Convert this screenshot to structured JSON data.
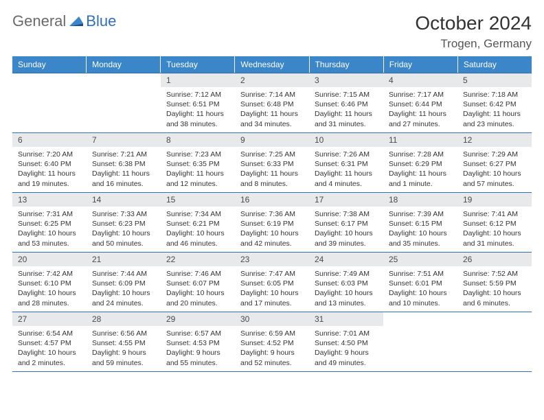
{
  "logo": {
    "text1": "General",
    "text2": "Blue"
  },
  "title": "October 2024",
  "location": "Trogen, Germany",
  "colors": {
    "header_bg": "#3a86c8",
    "header_text": "#ffffff",
    "rule": "#2f6fb3",
    "daynum_bg": "#e7e9eb",
    "daynum_text": "#4a4a4a",
    "body_text": "#333333",
    "logo_gray": "#6a6a6a",
    "logo_blue": "#2f6fb3"
  },
  "dow": [
    "Sunday",
    "Monday",
    "Tuesday",
    "Wednesday",
    "Thursday",
    "Friday",
    "Saturday"
  ],
  "weeks": [
    [
      null,
      null,
      {
        "n": "1",
        "sr": "Sunrise: 7:12 AM",
        "ss": "Sunset: 6:51 PM",
        "dl": "Daylight: 11 hours and 38 minutes."
      },
      {
        "n": "2",
        "sr": "Sunrise: 7:14 AM",
        "ss": "Sunset: 6:48 PM",
        "dl": "Daylight: 11 hours and 34 minutes."
      },
      {
        "n": "3",
        "sr": "Sunrise: 7:15 AM",
        "ss": "Sunset: 6:46 PM",
        "dl": "Daylight: 11 hours and 31 minutes."
      },
      {
        "n": "4",
        "sr": "Sunrise: 7:17 AM",
        "ss": "Sunset: 6:44 PM",
        "dl": "Daylight: 11 hours and 27 minutes."
      },
      {
        "n": "5",
        "sr": "Sunrise: 7:18 AM",
        "ss": "Sunset: 6:42 PM",
        "dl": "Daylight: 11 hours and 23 minutes."
      }
    ],
    [
      {
        "n": "6",
        "sr": "Sunrise: 7:20 AM",
        "ss": "Sunset: 6:40 PM",
        "dl": "Daylight: 11 hours and 19 minutes."
      },
      {
        "n": "7",
        "sr": "Sunrise: 7:21 AM",
        "ss": "Sunset: 6:38 PM",
        "dl": "Daylight: 11 hours and 16 minutes."
      },
      {
        "n": "8",
        "sr": "Sunrise: 7:23 AM",
        "ss": "Sunset: 6:35 PM",
        "dl": "Daylight: 11 hours and 12 minutes."
      },
      {
        "n": "9",
        "sr": "Sunrise: 7:25 AM",
        "ss": "Sunset: 6:33 PM",
        "dl": "Daylight: 11 hours and 8 minutes."
      },
      {
        "n": "10",
        "sr": "Sunrise: 7:26 AM",
        "ss": "Sunset: 6:31 PM",
        "dl": "Daylight: 11 hours and 4 minutes."
      },
      {
        "n": "11",
        "sr": "Sunrise: 7:28 AM",
        "ss": "Sunset: 6:29 PM",
        "dl": "Daylight: 11 hours and 1 minute."
      },
      {
        "n": "12",
        "sr": "Sunrise: 7:29 AM",
        "ss": "Sunset: 6:27 PM",
        "dl": "Daylight: 10 hours and 57 minutes."
      }
    ],
    [
      {
        "n": "13",
        "sr": "Sunrise: 7:31 AM",
        "ss": "Sunset: 6:25 PM",
        "dl": "Daylight: 10 hours and 53 minutes."
      },
      {
        "n": "14",
        "sr": "Sunrise: 7:33 AM",
        "ss": "Sunset: 6:23 PM",
        "dl": "Daylight: 10 hours and 50 minutes."
      },
      {
        "n": "15",
        "sr": "Sunrise: 7:34 AM",
        "ss": "Sunset: 6:21 PM",
        "dl": "Daylight: 10 hours and 46 minutes."
      },
      {
        "n": "16",
        "sr": "Sunrise: 7:36 AM",
        "ss": "Sunset: 6:19 PM",
        "dl": "Daylight: 10 hours and 42 minutes."
      },
      {
        "n": "17",
        "sr": "Sunrise: 7:38 AM",
        "ss": "Sunset: 6:17 PM",
        "dl": "Daylight: 10 hours and 39 minutes."
      },
      {
        "n": "18",
        "sr": "Sunrise: 7:39 AM",
        "ss": "Sunset: 6:15 PM",
        "dl": "Daylight: 10 hours and 35 minutes."
      },
      {
        "n": "19",
        "sr": "Sunrise: 7:41 AM",
        "ss": "Sunset: 6:12 PM",
        "dl": "Daylight: 10 hours and 31 minutes."
      }
    ],
    [
      {
        "n": "20",
        "sr": "Sunrise: 7:42 AM",
        "ss": "Sunset: 6:10 PM",
        "dl": "Daylight: 10 hours and 28 minutes."
      },
      {
        "n": "21",
        "sr": "Sunrise: 7:44 AM",
        "ss": "Sunset: 6:09 PM",
        "dl": "Daylight: 10 hours and 24 minutes."
      },
      {
        "n": "22",
        "sr": "Sunrise: 7:46 AM",
        "ss": "Sunset: 6:07 PM",
        "dl": "Daylight: 10 hours and 20 minutes."
      },
      {
        "n": "23",
        "sr": "Sunrise: 7:47 AM",
        "ss": "Sunset: 6:05 PM",
        "dl": "Daylight: 10 hours and 17 minutes."
      },
      {
        "n": "24",
        "sr": "Sunrise: 7:49 AM",
        "ss": "Sunset: 6:03 PM",
        "dl": "Daylight: 10 hours and 13 minutes."
      },
      {
        "n": "25",
        "sr": "Sunrise: 7:51 AM",
        "ss": "Sunset: 6:01 PM",
        "dl": "Daylight: 10 hours and 10 minutes."
      },
      {
        "n": "26",
        "sr": "Sunrise: 7:52 AM",
        "ss": "Sunset: 5:59 PM",
        "dl": "Daylight: 10 hours and 6 minutes."
      }
    ],
    [
      {
        "n": "27",
        "sr": "Sunrise: 6:54 AM",
        "ss": "Sunset: 4:57 PM",
        "dl": "Daylight: 10 hours and 2 minutes."
      },
      {
        "n": "28",
        "sr": "Sunrise: 6:56 AM",
        "ss": "Sunset: 4:55 PM",
        "dl": "Daylight: 9 hours and 59 minutes."
      },
      {
        "n": "29",
        "sr": "Sunrise: 6:57 AM",
        "ss": "Sunset: 4:53 PM",
        "dl": "Daylight: 9 hours and 55 minutes."
      },
      {
        "n": "30",
        "sr": "Sunrise: 6:59 AM",
        "ss": "Sunset: 4:52 PM",
        "dl": "Daylight: 9 hours and 52 minutes."
      },
      {
        "n": "31",
        "sr": "Sunrise: 7:01 AM",
        "ss": "Sunset: 4:50 PM",
        "dl": "Daylight: 9 hours and 49 minutes."
      },
      null,
      null
    ]
  ]
}
